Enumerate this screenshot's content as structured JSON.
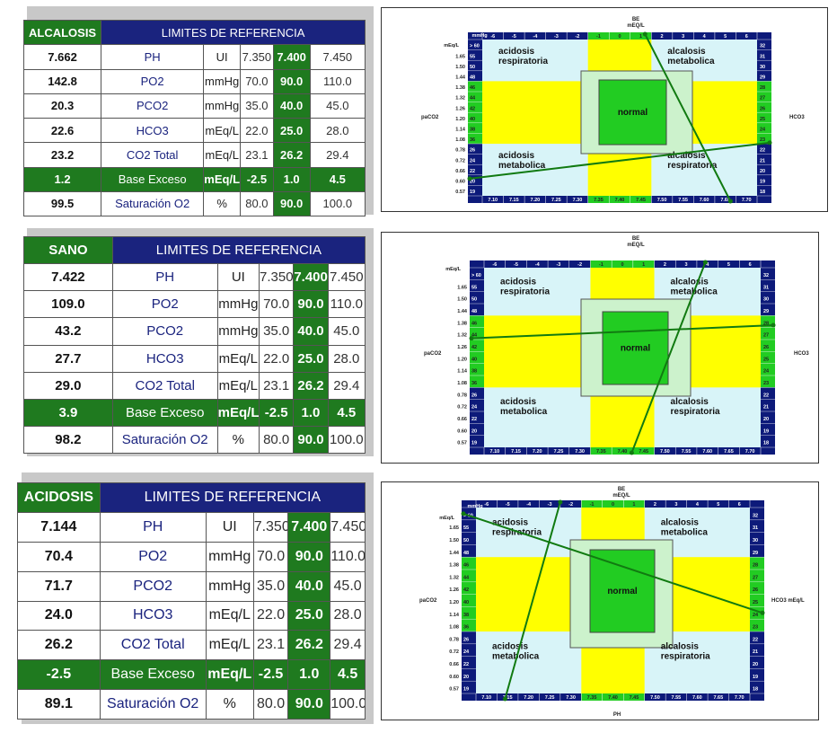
{
  "panels": [
    {
      "state": "ALCALOSIS",
      "title": "LIMITES DE REFERENCIA",
      "rows": [
        {
          "value": "7.662",
          "name": "PH",
          "unit": "UI",
          "low": "7.350",
          "mid": "7.400",
          "high": "7.450"
        },
        {
          "value": "142.8",
          "name": "PO2",
          "unit": "mmHg",
          "low": "70.0",
          "mid": "90.0",
          "high": "110.0"
        },
        {
          "value": "20.3",
          "name": "PCO2",
          "unit": "mmHg",
          "low": "35.0",
          "mid": "40.0",
          "high": "45.0"
        },
        {
          "value": "22.6",
          "name": "HCO3",
          "unit": "mEq/L",
          "low": "22.0",
          "mid": "25.0",
          "high": "28.0"
        },
        {
          "value": "23.2",
          "name": "CO2 Total",
          "unit": "mEq/L",
          "low": "23.1",
          "mid": "26.2",
          "high": "29.4"
        },
        {
          "value": "1.2",
          "name": "Base Exceso",
          "unit": "mEq/L",
          "low": "-2.5",
          "mid": "1.0",
          "high": "4.5"
        },
        {
          "value": "99.5",
          "name": "Saturación O2",
          "unit": "%",
          "low": "80.0",
          "mid": "90.0",
          "high": "100.0"
        }
      ]
    },
    {
      "state": "SANO",
      "title": "LIMITES DE REFERENCIA",
      "rows": [
        {
          "value": "7.422",
          "name": "PH",
          "unit": "UI",
          "low": "7.350",
          "mid": "7.400",
          "high": "7.450"
        },
        {
          "value": "109.0",
          "name": "PO2",
          "unit": "mmHg",
          "low": "70.0",
          "mid": "90.0",
          "high": "110.0"
        },
        {
          "value": "43.2",
          "name": "PCO2",
          "unit": "mmHg",
          "low": "35.0",
          "mid": "40.0",
          "high": "45.0"
        },
        {
          "value": "27.7",
          "name": "HCO3",
          "unit": "mEq/L",
          "low": "22.0",
          "mid": "25.0",
          "high": "28.0"
        },
        {
          "value": "29.0",
          "name": "CO2 Total",
          "unit": "mEq/L",
          "low": "23.1",
          "mid": "26.2",
          "high": "29.4"
        },
        {
          "value": "3.9",
          "name": "Base Exceso",
          "unit": "mEq/L",
          "low": "-2.5",
          "mid": "1.0",
          "high": "4.5"
        },
        {
          "value": "98.2",
          "name": "Saturación O2",
          "unit": "%",
          "low": "80.0",
          "mid": "90.0",
          "high": "100.0"
        }
      ]
    },
    {
      "state": "ACIDOSIS",
      "title": "LIMITES DE REFERENCIA",
      "rows": [
        {
          "value": "7.144",
          "name": "PH",
          "unit": "UI",
          "low": "7.350",
          "mid": "7.400",
          "high": "7.450"
        },
        {
          "value": "70.4",
          "name": "PO2",
          "unit": "mmHg",
          "low": "70.0",
          "mid": "90.0",
          "high": "110.0"
        },
        {
          "value": "71.7",
          "name": "PCO2",
          "unit": "mmHg",
          "low": "35.0",
          "mid": "40.0",
          "high": "45.0"
        },
        {
          "value": "24.0",
          "name": "HCO3",
          "unit": "mEq/L",
          "low": "22.0",
          "mid": "25.0",
          "high": "28.0"
        },
        {
          "value": "26.2",
          "name": "CO2 Total",
          "unit": "mEq/L",
          "low": "23.1",
          "mid": "26.2",
          "high": "29.4"
        },
        {
          "value": "-2.5",
          "name": "Base Exceso",
          "unit": "mEq/L",
          "low": "-2.5",
          "mid": "1.0",
          "high": "4.5"
        },
        {
          "value": "89.1",
          "name": "Saturación O2",
          "unit": "%",
          "low": "80.0",
          "mid": "90.0",
          "high": "100.0"
        }
      ]
    }
  ],
  "diagram": {
    "be_title": "BE",
    "be_unit": "mEQ/L",
    "mmhg_label": "mmHg",
    "meql_label": "mEq/L",
    "be_ticks": [
      "-6",
      "-5",
      "-4",
      "-3",
      "-2",
      "-1",
      "0",
      "1",
      "2",
      "3",
      "4",
      "5",
      "6"
    ],
    "ph_ticks": [
      "7.10",
      "7.15",
      "7.20",
      "7.25",
      "7.30",
      "7.35",
      "7.40",
      "7.45",
      "7.50",
      "7.55",
      "7.60",
      "7.65",
      "7.70"
    ],
    "paco2_ticks": [
      "> 60",
      "55",
      "50",
      "48",
      "46",
      "44",
      "42",
      "40",
      "38",
      "36",
      "26",
      "24",
      "22",
      "20",
      "19"
    ],
    "factor_ticks": [
      "",
      "1.65",
      "1.50",
      "1.44",
      "1.38",
      "1.32",
      "1.26",
      "1.20",
      "1.14",
      "1.08",
      "0.78",
      "0.72",
      "0.66",
      "0.60",
      "0.57"
    ],
    "hco3_ticks": [
      "32",
      "31",
      "30",
      "29",
      "28",
      "27",
      "26",
      "25",
      "24",
      "23",
      "22",
      "21",
      "20",
      "19",
      "18"
    ],
    "paco2_label": "paCO2",
    "hco3_label": "HCO3",
    "hco3_label_unit": "HCO3 mEq/L",
    "ph_label": "PH",
    "zones": {
      "acid_resp_1": "acidosis",
      "acid_resp_2": "respiratoria",
      "alc_met_1": "alcalosis",
      "alc_met_2": "metabolica",
      "normal": "normal",
      "acid_met_1": "acidosis",
      "acid_met_2": "metabolica",
      "alc_resp_1": "alcalosis",
      "alc_resp_2": "respiratoria"
    }
  },
  "chart_data": [
    {
      "type": "line",
      "panel": "ALCALOSIS",
      "be": 1.2,
      "ph": 7.662,
      "paco2": 20.3,
      "hco3": 22.6
    },
    {
      "type": "line",
      "panel": "SANO",
      "be": 3.9,
      "ph": 7.422,
      "paco2": 43.2,
      "hco3": 27.7
    },
    {
      "type": "line",
      "panel": "ACIDOSIS",
      "be": -2.5,
      "ph": 7.144,
      "paco2": 71.7,
      "hco3": 24.0
    }
  ],
  "colors": {
    "header_green": "#1f7a1f",
    "header_navy": "#1a237e",
    "grid_navy": "#0d1a7a",
    "cyan": "#d8f4f8",
    "yellow": "#ffff00",
    "pale_green": "#ccf2cc",
    "green": "#22cc22",
    "line_green": "#117a11"
  }
}
